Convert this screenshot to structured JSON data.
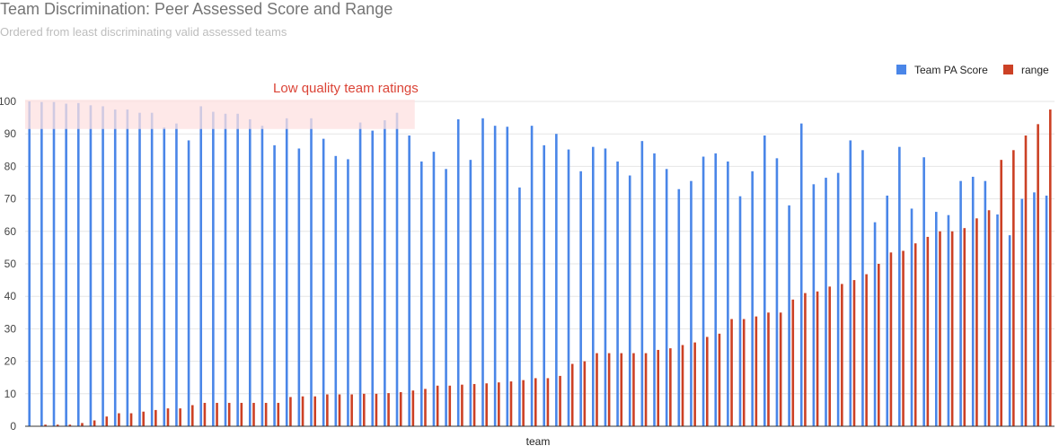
{
  "chart_data": {
    "type": "bar",
    "title": "Team Discrimination: Peer Assessed Score and Range",
    "subtitle": "Ordered from least discriminating valid assessed teams",
    "xlabel": "team",
    "ylabel": "",
    "ylim": [
      0,
      100
    ],
    "yticks": [
      0,
      10,
      20,
      30,
      40,
      50,
      60,
      70,
      80,
      90,
      100
    ],
    "grid": true,
    "legend_position": "top-right",
    "annotation": {
      "text": "Low quality team ratings",
      "band_y": [
        91.5,
        100.5
      ],
      "band_last_team_index": 31,
      "band_color": "#fde0e0"
    },
    "series": [
      {
        "name": "Team PA Score",
        "color": "#4a86e8",
        "values": [
          100,
          99.8,
          99.8,
          99.3,
          99.5,
          98.8,
          98.5,
          97.5,
          97.5,
          96.5,
          96.5,
          92,
          93.2,
          88,
          98.5,
          96.8,
          96.2,
          96.2,
          94.5,
          92.5,
          86.5,
          94.8,
          85.5,
          94.8,
          88.5,
          83.2,
          82.2,
          93.5,
          91,
          94.2,
          96.5,
          89.5,
          81.5,
          84.5,
          79.2,
          94.5,
          82,
          94.8,
          92.5,
          92.2,
          73.5,
          92.5,
          86.5,
          90,
          85.2,
          78.5,
          86,
          85.5,
          81.5,
          77.2,
          87.8,
          84,
          79.2,
          73,
          75.5,
          83,
          84,
          81.5,
          70.8,
          78.5,
          89.5,
          82.5,
          68,
          93.2,
          74.5,
          76.5,
          78,
          88,
          85,
          62.8,
          71,
          86,
          67,
          82.8,
          66,
          65,
          75.5,
          76.8,
          75.5,
          65.2,
          58.8,
          70,
          72,
          71
        ]
      },
      {
        "name": "range",
        "color": "#cc4125",
        "values": [
          0,
          0.5,
          0.5,
          0.5,
          1,
          1.8,
          3,
          4,
          4,
          4.5,
          5,
          5.5,
          5.5,
          6.5,
          7.2,
          7.2,
          7.2,
          7.2,
          7.2,
          7.2,
          7.2,
          9,
          9.2,
          9.2,
          9.8,
          9.8,
          9.8,
          10,
          10,
          10.2,
          10.5,
          11,
          11.5,
          12.5,
          12.5,
          12.8,
          13,
          13.2,
          13.5,
          13.8,
          14.2,
          14.8,
          14.8,
          15.5,
          19.2,
          20,
          22.5,
          22.5,
          22.5,
          22.5,
          22.5,
          23.5,
          24,
          25,
          25.8,
          27.5,
          28.5,
          33,
          33,
          33.8,
          35,
          35,
          39,
          41,
          41.5,
          43,
          43.8,
          45,
          46.8,
          50,
          53.5,
          54,
          56.3,
          58.3,
          60,
          60,
          61,
          64,
          66.5,
          82,
          85,
          89.5,
          93,
          97.5
        ]
      }
    ]
  }
}
